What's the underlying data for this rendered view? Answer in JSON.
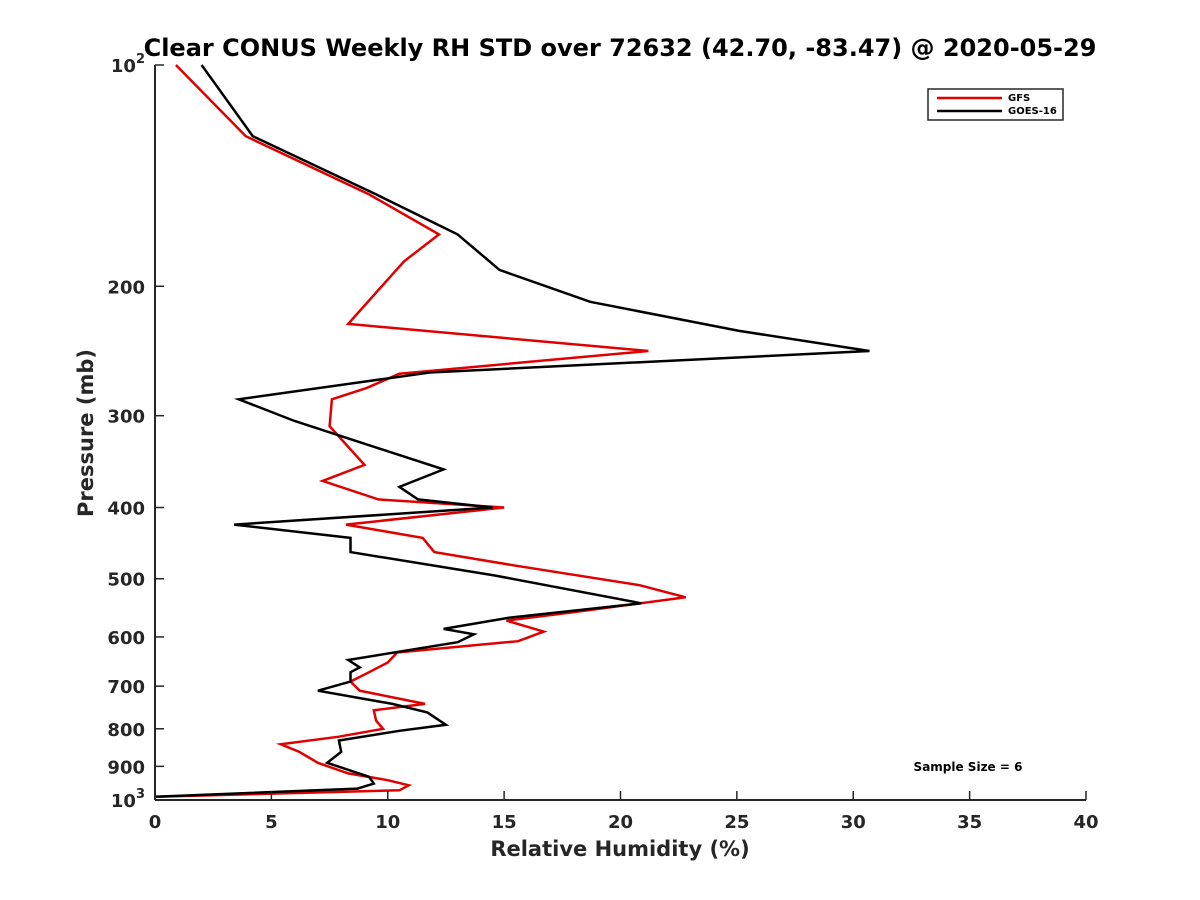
{
  "chart_data": {
    "type": "line",
    "title": "Clear CONUS Weekly RH STD over 72632 (42.70, -83.47) @ 2020-05-29",
    "xlabel": "Relative Humidity (%)",
    "ylabel": "Pressure (mb)",
    "xlim": [
      0,
      40
    ],
    "ylim": [
      100,
      1000
    ],
    "y_scale": "log",
    "y_reversed": true,
    "grid": false,
    "legend_position": "top-right",
    "x_ticks": [
      "0",
      "5",
      "10",
      "15",
      "20",
      "25",
      "30",
      "35",
      "40"
    ],
    "y_ticks": [
      {
        "value": 100,
        "base": "10",
        "exp": "2"
      },
      {
        "value": 200,
        "label": "200"
      },
      {
        "value": 300,
        "label": "300"
      },
      {
        "value": 400,
        "label": "400"
      },
      {
        "value": 500,
        "label": "500"
      },
      {
        "value": 600,
        "label": "600"
      },
      {
        "value": 700,
        "label": "700"
      },
      {
        "value": 800,
        "label": "800"
      },
      {
        "value": 900,
        "label": "900"
      },
      {
        "value": 1000,
        "base": "10",
        "exp": "3"
      }
    ],
    "annotation": "Sample Size = 6",
    "series": [
      {
        "name": "GFS",
        "color": "#e00000",
        "points": [
          [
            0.9,
            100
          ],
          [
            3.9,
            125
          ],
          [
            9.2,
            150
          ],
          [
            12.2,
            170
          ],
          [
            10.7,
            185
          ],
          [
            8.3,
            225
          ],
          [
            21.2,
            245
          ],
          [
            10.5,
            263
          ],
          [
            9.1,
            275
          ],
          [
            7.6,
            285
          ],
          [
            7.5,
            310
          ],
          [
            9.0,
            350
          ],
          [
            7.2,
            368
          ],
          [
            9.6,
            390
          ],
          [
            15.0,
            400
          ],
          [
            8.2,
            422
          ],
          [
            11.5,
            440
          ],
          [
            12.0,
            460
          ],
          [
            15.5,
            480
          ],
          [
            20.8,
            510
          ],
          [
            22.8,
            530
          ],
          [
            18.0,
            555
          ],
          [
            15.1,
            570
          ],
          [
            16.7,
            590
          ],
          [
            15.6,
            608
          ],
          [
            10.4,
            630
          ],
          [
            10.0,
            650
          ],
          [
            9.2,
            670
          ],
          [
            8.4,
            690
          ],
          [
            8.8,
            710
          ],
          [
            11.6,
            740
          ],
          [
            9.4,
            755
          ],
          [
            9.5,
            780
          ],
          [
            9.8,
            800
          ],
          [
            7.9,
            820
          ],
          [
            5.4,
            840
          ],
          [
            6.2,
            860
          ],
          [
            7.0,
            890
          ],
          [
            8.3,
            920
          ],
          [
            10.0,
            940
          ],
          [
            10.9,
            955
          ],
          [
            10.5,
            970
          ],
          [
            0.0,
            990
          ]
        ]
      },
      {
        "name": "GOES-16",
        "color": "#000000",
        "points": [
          [
            2.0,
            100
          ],
          [
            4.2,
            125
          ],
          [
            9.5,
            150
          ],
          [
            13.0,
            170
          ],
          [
            14.8,
            190
          ],
          [
            18.7,
            210
          ],
          [
            25.1,
            230
          ],
          [
            30.7,
            245
          ],
          [
            11.8,
            262
          ],
          [
            3.6,
            285
          ],
          [
            6.0,
            305
          ],
          [
            12.4,
            355
          ],
          [
            10.5,
            375
          ],
          [
            11.3,
            390
          ],
          [
            14.5,
            400
          ],
          [
            3.4,
            422
          ],
          [
            8.4,
            440
          ],
          [
            8.4,
            460
          ],
          [
            14.6,
            495
          ],
          [
            20.9,
            540
          ],
          [
            15.2,
            565
          ],
          [
            12.4,
            585
          ],
          [
            13.7,
            595
          ],
          [
            13.0,
            610
          ],
          [
            8.3,
            645
          ],
          [
            8.8,
            660
          ],
          [
            8.4,
            670
          ],
          [
            8.4,
            690
          ],
          [
            7.0,
            710
          ],
          [
            10.2,
            740
          ],
          [
            11.7,
            760
          ],
          [
            12.5,
            790
          ],
          [
            10.5,
            805
          ],
          [
            7.9,
            830
          ],
          [
            8.0,
            860
          ],
          [
            7.4,
            890
          ],
          [
            9.2,
            930
          ],
          [
            9.4,
            950
          ],
          [
            8.7,
            965
          ],
          [
            0.0,
            990
          ]
        ]
      }
    ]
  }
}
